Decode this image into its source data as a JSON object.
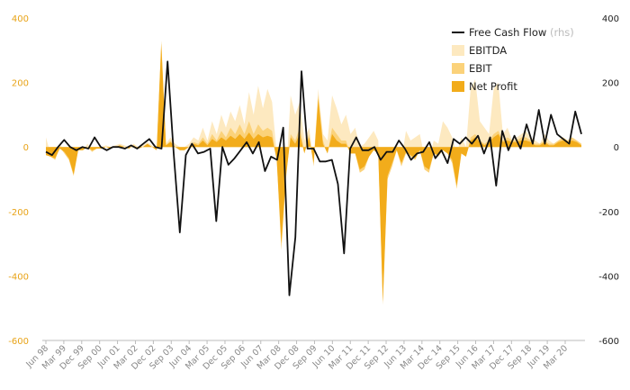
{
  "chart_data": {
    "type": "area",
    "title": "",
    "xlabel": "",
    "ylabel": "",
    "ylim_left": [
      -600,
      400
    ],
    "ylim_right": [
      -600,
      400
    ],
    "yticks_left": [
      "400",
      "200",
      "0",
      "-200",
      "-400",
      "-600"
    ],
    "yticks_right": [
      "400",
      "200",
      "0",
      "-200",
      "-400",
      "-600"
    ],
    "left_axis_color": "#e8a317",
    "right_axis_color": "#222222",
    "grid": false,
    "legend_position": "top-right",
    "x_tick_labels": [
      "Jun 98",
      "Mar 99",
      "Dec 99",
      "Sep 00",
      "Jun 01",
      "Mar 02",
      "Dec 02",
      "Sep 03",
      "Jun 04",
      "Mar 05",
      "Dec 05",
      "Sep 06",
      "Jun 07",
      "Mar 08",
      "Dec 08",
      "Sep 09",
      "Jun 10",
      "Mar 11",
      "Dec 11",
      "Sep 12",
      "Jun 13",
      "Mar 14",
      "Dec 14",
      "Sep 15",
      "Jun 16",
      "Mar 17",
      "Dec 17",
      "Sep 18",
      "Jun 19",
      "Mar 20"
    ],
    "x_start": "Jun 98",
    "x_frequency": "quarterly",
    "legend": [
      {
        "name": "Free Cash Flow",
        "suffix": "(rhs)",
        "color": "#111111",
        "kind": "line"
      },
      {
        "name": "EBITDA",
        "color": "#fde9c0",
        "kind": "area"
      },
      {
        "name": "EBIT",
        "color": "#fbd27a",
        "kind": "area"
      },
      {
        "name": "Net Profit",
        "color": "#f2ac1b",
        "kind": "area"
      }
    ],
    "series": [
      {
        "name": "EBITDA",
        "values": [
          30,
          -20,
          -30,
          10,
          -10,
          -40,
          -80,
          0,
          -10,
          10,
          -10,
          0,
          0,
          5,
          0,
          5,
          10,
          5,
          0,
          10,
          0,
          5,
          15,
          5,
          -5,
          310,
          10,
          30,
          10,
          0,
          0,
          10,
          30,
          20,
          60,
          20,
          80,
          40,
          100,
          60,
          110,
          80,
          130,
          70,
          170,
          100,
          190,
          120,
          180,
          140,
          -20,
          -80,
          -100,
          160,
          100,
          140,
          20,
          60,
          -40,
          180,
          40,
          20,
          160,
          120,
          70,
          100,
          40,
          60,
          0,
          10,
          30,
          50,
          20,
          -450,
          -50,
          -20,
          10,
          -40,
          50,
          20,
          30,
          40,
          -30,
          -40,
          20,
          10,
          80,
          60,
          30,
          -20,
          30,
          0,
          180,
          210,
          80,
          60,
          40,
          180,
          200,
          40,
          60,
          20,
          30,
          40,
          50,
          30,
          20,
          10,
          40,
          20,
          10,
          20,
          30,
          20,
          30,
          20,
          10
        ]
      },
      {
        "name": "EBIT",
        "values": [
          -20,
          -30,
          -40,
          0,
          -20,
          -40,
          -90,
          -10,
          -10,
          0,
          -15,
          -5,
          -5,
          0,
          -5,
          0,
          5,
          0,
          -5,
          5,
          -5,
          0,
          10,
          0,
          -10,
          330,
          5,
          20,
          0,
          -10,
          -10,
          0,
          15,
          10,
          30,
          10,
          40,
          20,
          50,
          30,
          60,
          40,
          70,
          40,
          80,
          40,
          70,
          50,
          60,
          50,
          -40,
          -320,
          -100,
          40,
          20,
          60,
          -10,
          40,
          -60,
          160,
          20,
          -20,
          60,
          40,
          20,
          20,
          -20,
          -20,
          -80,
          -70,
          -30,
          -10,
          -20,
          -490,
          -100,
          -60,
          -10,
          -60,
          -20,
          -30,
          -40,
          -10,
          -70,
          -80,
          -20,
          -30,
          -10,
          -20,
          -50,
          -130,
          -20,
          -30,
          30,
          40,
          20,
          10,
          20,
          40,
          50,
          20,
          30,
          20,
          20,
          30,
          30,
          20,
          10,
          10,
          20,
          10,
          10,
          20,
          30,
          20,
          30,
          20,
          10
        ]
      },
      {
        "name": "Net Profit",
        "values": [
          -25,
          -30,
          -35,
          -5,
          -15,
          -35,
          -85,
          -10,
          -10,
          0,
          -10,
          -5,
          -5,
          0,
          -5,
          0,
          5,
          0,
          -5,
          5,
          -5,
          0,
          10,
          0,
          -10,
          320,
          5,
          15,
          0,
          -10,
          -10,
          0,
          10,
          5,
          20,
          5,
          25,
          15,
          30,
          20,
          35,
          25,
          40,
          25,
          45,
          25,
          40,
          30,
          35,
          30,
          -40,
          -300,
          -90,
          30,
          10,
          40,
          -20,
          30,
          -50,
          150,
          10,
          -20,
          40,
          20,
          10,
          10,
          -20,
          -20,
          -70,
          -60,
          -30,
          -10,
          -20,
          -480,
          -90,
          -50,
          -10,
          -50,
          -15,
          -25,
          -35,
          -10,
          -60,
          -70,
          -20,
          -25,
          -10,
          -20,
          -40,
          -120,
          -20,
          -30,
          20,
          30,
          15,
          5,
          15,
          30,
          40,
          15,
          20,
          15,
          15,
          20,
          20,
          15,
          5,
          5,
          15,
          5,
          5,
          15,
          20,
          15,
          20,
          15,
          5
        ]
      },
      {
        "name": "Free Cash Flow",
        "axis": "rhs",
        "values": [
          -15,
          -25,
          0,
          22,
          0,
          -10,
          0,
          -5,
          30,
          0,
          -10,
          0,
          0,
          -5,
          5,
          -5,
          10,
          25,
          0,
          -5,
          265,
          -20,
          -265,
          -25,
          10,
          -20,
          -15,
          -5,
          -230,
          0,
          -55,
          -35,
          -10,
          15,
          -20,
          15,
          -75,
          -30,
          -40,
          60,
          -460,
          -280,
          235,
          -5,
          -5,
          -45,
          -45,
          -40,
          -115,
          -330,
          -5,
          30,
          -10,
          -10,
          0,
          -40,
          -15,
          -15,
          20,
          -5,
          -40,
          -20,
          -15,
          15,
          -35,
          -10,
          -50,
          25,
          10,
          30,
          10,
          35,
          -20,
          30,
          -120,
          50,
          -10,
          35,
          -5,
          70,
          10,
          115,
          10,
          100,
          40,
          25,
          10,
          110,
          40
        ]
      }
    ]
  }
}
